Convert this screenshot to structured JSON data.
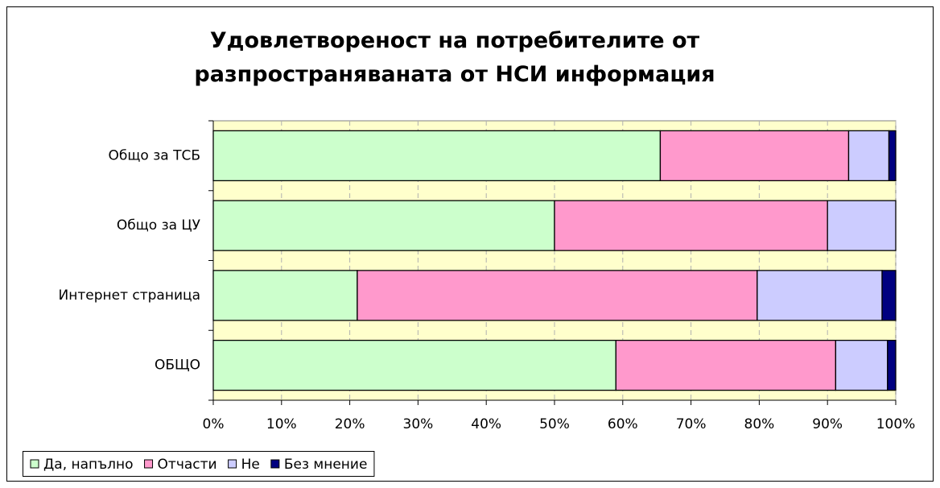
{
  "chart_data": {
    "type": "bar",
    "orientation": "horizontal",
    "stacked": true,
    "title": "Удовлетвореност на потребителите от разпространяваната от НСИ информация",
    "categories": [
      "Общо за ТСБ",
      "Общо за ЦУ",
      "Интернет страница",
      "ОБЩО"
    ],
    "series": [
      {
        "name": "Да, напълно",
        "color": "#CCFFCC",
        "values": [
          65.5,
          50.0,
          21.1,
          59.0
        ]
      },
      {
        "name": "Отчасти",
        "color": "#FF99CC",
        "values": [
          27.6,
          40.0,
          58.6,
          32.2
        ]
      },
      {
        "name": "Не",
        "color": "#CCCCFF",
        "values": [
          5.9,
          10.0,
          18.3,
          7.6
        ]
      },
      {
        "name": "Без мнение",
        "color": "#000080",
        "values": [
          1.0,
          0,
          2.0,
          1.2
        ]
      }
    ],
    "xlim": [
      0,
      100
    ],
    "xticks": [
      {
        "value": 0,
        "label": "0%"
      },
      {
        "value": 10,
        "label": "10%"
      },
      {
        "value": 20,
        "label": "20%"
      },
      {
        "value": 30,
        "label": "30%"
      },
      {
        "value": 40,
        "label": "40%"
      },
      {
        "value": 50,
        "label": "50%"
      },
      {
        "value": 60,
        "label": "60%"
      },
      {
        "value": 70,
        "label": "70%"
      },
      {
        "value": 80,
        "label": "80%"
      },
      {
        "value": 90,
        "label": "90%"
      },
      {
        "value": 100,
        "label": "100%"
      }
    ],
    "grid": true,
    "legend": "bottom-left"
  }
}
